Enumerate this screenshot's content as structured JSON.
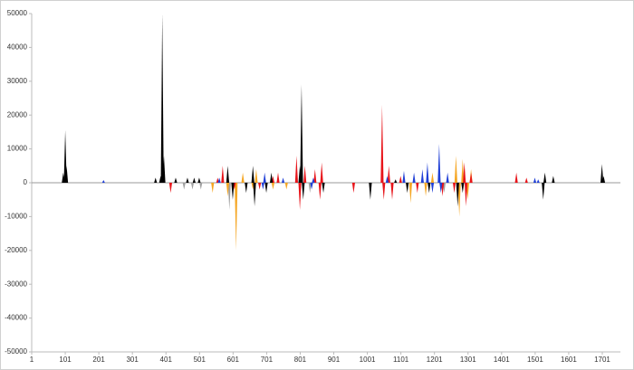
{
  "chart_data": {
    "type": "spike",
    "xlim": [
      1,
      1755
    ],
    "xticks": [
      1,
      101,
      201,
      301,
      401,
      501,
      601,
      701,
      801,
      901,
      1001,
      1101,
      1201,
      1301,
      1401,
      1501,
      1601,
      1701
    ],
    "ylim": [
      -50000,
      50000
    ],
    "yticks": [
      -50000,
      -40000,
      -30000,
      -20000,
      -10000,
      0,
      10000,
      20000,
      30000,
      40000,
      50000
    ],
    "grid": false,
    "series": [
      {
        "color": "#a0a0a0",
        "x": [
          455,
          480,
          505,
          590,
          830,
          1230
        ],
        "values": [
          -2000,
          -2000,
          -2000,
          -8000,
          -3000,
          -3000
        ]
      },
      {
        "color": "#f5a623",
        "x": [
          540,
          585,
          610,
          630,
          660,
          670,
          720,
          760,
          1130,
          1175,
          1195,
          1265,
          1275,
          1285,
          1300,
          1310
        ],
        "values": [
          -3000,
          -4000,
          -20000,
          3000,
          -2000,
          4000,
          -2000,
          -2000,
          -6000,
          -4000,
          3000,
          8000,
          -10000,
          7000,
          -5000,
          4000
        ]
      },
      {
        "color": "#e8141a",
        "x": [
          415,
          555,
          570,
          585,
          605,
          680,
          720,
          735,
          790,
          800,
          815,
          845,
          860,
          865,
          960,
          1045,
          1050,
          1065,
          1075,
          1100,
          1150,
          1225,
          1260,
          1290,
          1295,
          1310,
          1445,
          1475
        ],
        "values": [
          -3000,
          1500,
          5000,
          3000,
          -2000,
          -2000,
          2000,
          3000,
          8000,
          -8000,
          5000,
          4000,
          -5000,
          6000,
          -3000,
          23000,
          -5000,
          5000,
          -5000,
          2000,
          -3000,
          -4000,
          -3000,
          6000,
          -7000,
          3000,
          3000,
          1500
        ]
      },
      {
        "color": "#1f3fd6",
        "x": [
          215,
          560,
          690,
          695,
          750,
          835,
          840,
          1060,
          1110,
          1140,
          1165,
          1180,
          1195,
          1215,
          1220,
          1240,
          1500,
          1510
        ],
        "values": [
          800,
          1500,
          -2000,
          3000,
          1500,
          -2000,
          1500,
          2000,
          3500,
          3000,
          4000,
          6000,
          -3000,
          11500,
          -3000,
          3000,
          1500,
          1000
        ]
      },
      {
        "color": "#000000",
        "x": [
          95,
          101,
          105,
          370,
          385,
          390,
          395,
          430,
          465,
          485,
          500,
          585,
          600,
          640,
          660,
          665,
          700,
          715,
          800,
          805,
          810,
          870,
          1010,
          1085,
          1120,
          1185,
          1270,
          1285,
          1525,
          1530,
          1555,
          1700,
          1705
        ],
        "values": [
          3000,
          15500,
          5000,
          1500,
          2000,
          50000,
          8000,
          1500,
          1500,
          1500,
          1500,
          5000,
          -5000,
          -3000,
          5000,
          -7000,
          -3000,
          3000,
          5000,
          29000,
          -5000,
          -3000,
          -5000,
          1000,
          -3000,
          -3000,
          -7000,
          -3000,
          -5000,
          3000,
          2000,
          5500,
          2000
        ]
      }
    ]
  }
}
